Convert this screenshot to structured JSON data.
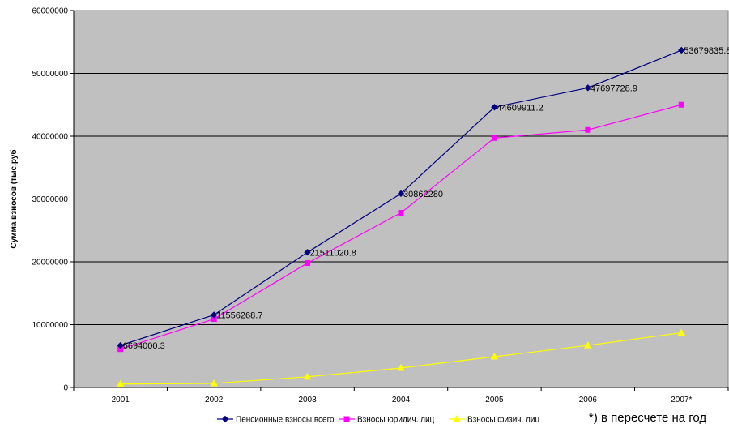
{
  "chart_data": {
    "type": "line",
    "title": "",
    "xlabel": "",
    "ylabel": "Сумма взносов (тыс.руб",
    "categories": [
      "2001",
      "2002",
      "2003",
      "2004",
      "2005",
      "2006",
      "2007*"
    ],
    "ylim": [
      0,
      60000000
    ],
    "yticks": [
      "0",
      "10000000",
      "20000000",
      "30000000",
      "40000000",
      "50000000",
      "60000000"
    ],
    "ytick_values": [
      0,
      10000000,
      20000000,
      30000000,
      40000000,
      50000000,
      60000000
    ],
    "grid": true,
    "legend_position": "bottom",
    "plot_background": "#c0c0c0",
    "series": [
      {
        "name": "Пенсионные взносы всего",
        "color": "#000080",
        "marker": "diamond",
        "values": [
          6694000.3,
          11556268.7,
          21511020.8,
          30862280,
          44609911.2,
          47697728.9,
          53679835.8
        ],
        "labels": [
          "6694000.3",
          "11556268.7",
          "21511020.8",
          "30862280",
          "44609911.2",
          "47697728.9",
          "53679835.8"
        ]
      },
      {
        "name": "Взносы юридич. лиц",
        "color": "#ff00ff",
        "marker": "square",
        "values": [
          6100000,
          10900000,
          19800000,
          27800000,
          39700000,
          41000000,
          45000000
        ]
      },
      {
        "name": "Взносы физич. лиц",
        "color": "#ffff00",
        "marker": "triangle",
        "values": [
          550000,
          650000,
          1700000,
          3100000,
          4900000,
          6700000,
          8700000
        ]
      }
    ],
    "footnote": "*) в пересчете на год"
  }
}
